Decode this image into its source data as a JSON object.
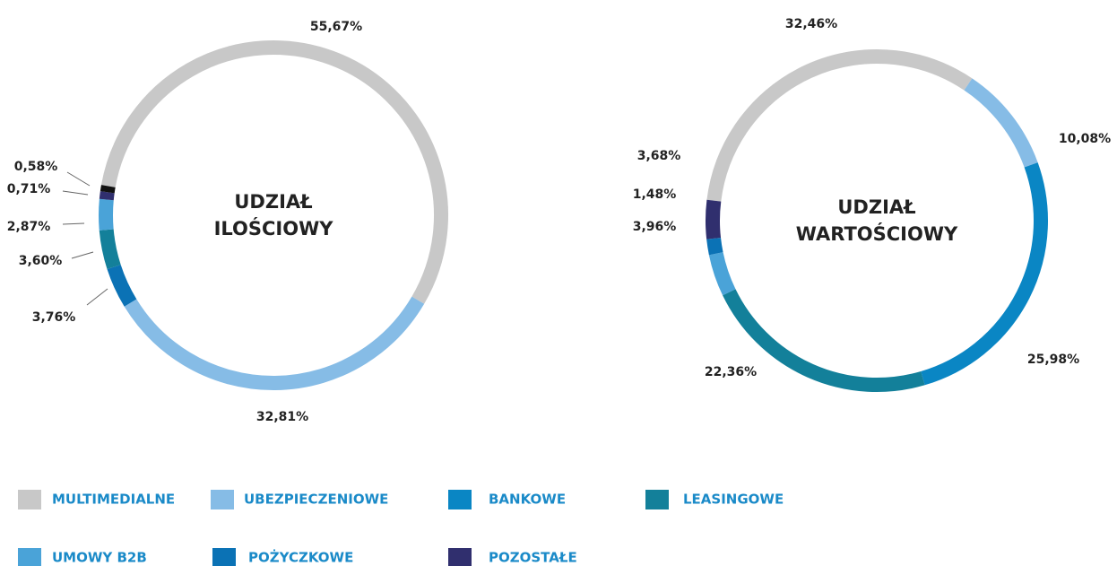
{
  "chart_data": [
    {
      "type": "donut",
      "center_label": [
        "UDZIAŁ",
        "ILOŚCIOWY"
      ],
      "categories": [
        "MULTIMEDIALNE",
        "UBEZPIECZENIOWE",
        "POŻYCZKOWE",
        "LEASINGOWE",
        "UMOWY B2B",
        "POZOSTAŁE",
        null
      ],
      "values": [
        55.67,
        32.81,
        3.76,
        3.6,
        2.87,
        0.71,
        0.58
      ],
      "value_labels": [
        "55,67%",
        "32,81%",
        "3,76%",
        "3,60%",
        "2,87%",
        "0,71%",
        "0,58%"
      ],
      "colors": [
        "#c8c8c8",
        "#86bce6",
        "#0b72b5",
        "#13809a",
        "#4aa3d8",
        "#302f6e",
        "#111111"
      ]
    },
    {
      "type": "donut",
      "center_label": [
        "UDZIAŁ",
        "WARTOŚCIOWY"
      ],
      "categories": [
        "MULTIMEDIALNE",
        "UBEZPIECZENIOWE",
        "BANKOWE",
        "LEASINGOWE",
        "UMOWY B2B",
        "POŻYCZKOWE",
        "POZOSTAŁE"
      ],
      "values": [
        32.46,
        10.08,
        25.98,
        22.36,
        3.96,
        1.48,
        3.68
      ],
      "value_labels": [
        "32,46%",
        "10,08%",
        "25,98%",
        "22,36%",
        "3,96%",
        "1,48%",
        "3,68%"
      ],
      "colors": [
        "#c8c8c8",
        "#86bce6",
        "#0a86c4",
        "#13809a",
        "#4aa3d8",
        "#0b72b5",
        "#302f6e"
      ]
    }
  ]
}
